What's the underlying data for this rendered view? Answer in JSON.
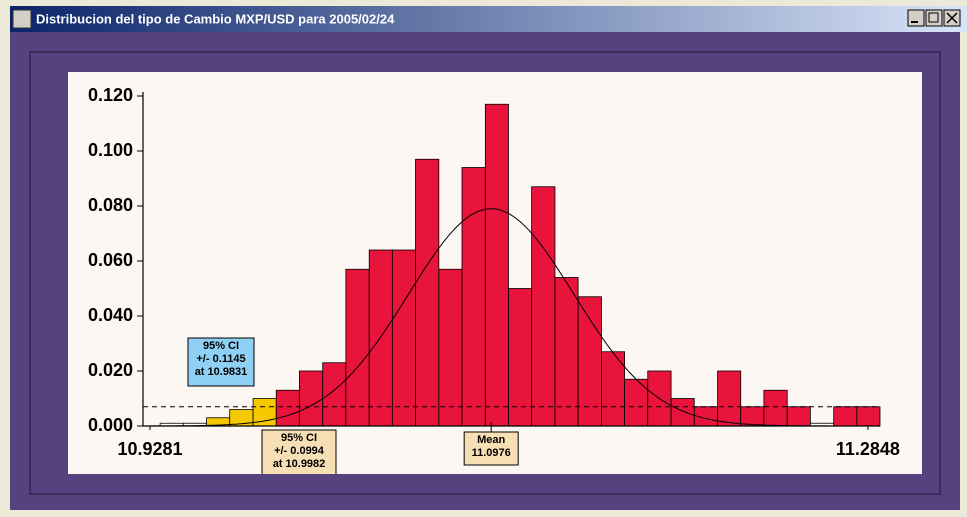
{
  "window": {
    "title": "Distribucion del tipo de Cambio MXP/USD para 2005/02/24"
  },
  "chart_data": {
    "type": "histogram",
    "bins": [
      10.9331,
      10.9446,
      10.9562,
      10.9677,
      10.9793,
      10.9908,
      11.0023,
      11.0139,
      11.0254,
      11.037,
      11.0485,
      11.06,
      11.0716,
      11.0831,
      11.0947,
      11.1062,
      11.1177,
      11.1293,
      11.1408,
      11.1524,
      11.1639,
      11.1754,
      11.187,
      11.1985,
      11.2101,
      11.2216,
      11.2331,
      11.2447,
      11.2562,
      11.2678,
      11.2793,
      11.2908
    ],
    "values": [
      0.001,
      0.001,
      0.003,
      0.006,
      0.01,
      0.013,
      0.02,
      0.023,
      0.057,
      0.064,
      0.064,
      0.097,
      0.057,
      0.094,
      0.117,
      0.05,
      0.087,
      0.054,
      0.047,
      0.027,
      0.017,
      0.02,
      0.01,
      0.007,
      0.02,
      0.007,
      0.013,
      0.007,
      0.001,
      0.007,
      0.007
    ],
    "bar_colors": [
      "#ffffff",
      "#ffffff",
      "#f5c800",
      "#f5c800",
      "#f5c800",
      "#e8143c",
      "#e8143c",
      "#e8143c",
      "#e8143c",
      "#e8143c",
      "#e8143c",
      "#e8143c",
      "#e8143c",
      "#e8143c",
      "#e8143c",
      "#e8143c",
      "#e8143c",
      "#e8143c",
      "#e8143c",
      "#e8143c",
      "#e8143c",
      "#e8143c",
      "#e8143c",
      "#e8143c",
      "#e8143c",
      "#e8143c",
      "#e8143c",
      "#e8143c",
      "#ffffff",
      "#e8143c",
      "#e8143c"
    ],
    "xlim": [
      10.9246,
      11.2908
    ],
    "xticks": [
      10.9281,
      11.2848
    ],
    "ylim": [
      0,
      0.12
    ],
    "yticks": [
      {
        "value": 0,
        "label": "0.000"
      },
      {
        "value": 0.02,
        "label": "0.020"
      },
      {
        "value": 0.04,
        "label": "0.040"
      },
      {
        "value": 0.06,
        "label": "0.060"
      },
      {
        "value": 0.08,
        "label": "0.080"
      },
      {
        "value": 0.1,
        "label": "0.100"
      },
      {
        "value": 0.12,
        "label": "0.120"
      }
    ],
    "normal_curve": {
      "mean": 11.0976,
      "sd": 0.0411,
      "peak": 0.079
    },
    "threshold": 0.007,
    "annotations": {
      "ci_upper": [
        "95% CI",
        "+/- 0.1145",
        "at 10.9831"
      ],
      "ci_lower": [
        "95% CI",
        "+/- 0.0994",
        "at 10.9982"
      ],
      "mean_label": "Mean"
    }
  }
}
